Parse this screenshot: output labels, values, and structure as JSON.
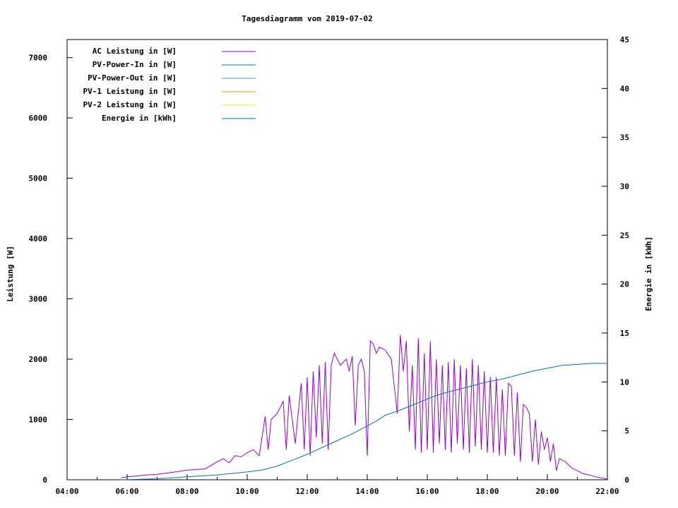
{
  "chart_data": {
    "type": "line",
    "title": "Tagesdiagramm vom 2019-07-02",
    "ylabel": "Leistung [W]",
    "y2label": "Energie in [kWh]",
    "xlabel": "",
    "x_unit": "hour of day",
    "xlim": [
      4,
      22
    ],
    "ylim": [
      0,
      7300
    ],
    "y2lim": [
      0,
      45
    ],
    "x_ticks": [
      "04:00",
      "06:00",
      "08:00",
      "10:00",
      "12:00",
      "14:00",
      "16:00",
      "18:00",
      "20:00",
      "22:00"
    ],
    "y_ticks": [
      "0",
      "1000",
      "2000",
      "3000",
      "4000",
      "5000",
      "6000",
      "7000"
    ],
    "y2_ticks": [
      "0",
      "5",
      "10",
      "15",
      "20",
      "25",
      "30",
      "35",
      "40",
      "45"
    ],
    "grid": false,
    "legend_position": "top-left",
    "series": [
      {
        "name": "AC Leistung in [W]",
        "axis": "left",
        "color": "#9400d3",
        "x": [
          5.8,
          6.0,
          6.3,
          6.6,
          7.0,
          7.3,
          7.6,
          8.0,
          8.3,
          8.6,
          9.0,
          9.2,
          9.4,
          9.6,
          9.8,
          10.0,
          10.2,
          10.4,
          10.6,
          10.7,
          10.8,
          11.0,
          11.2,
          11.3,
          11.4,
          11.6,
          11.8,
          11.9,
          12.0,
          12.1,
          12.2,
          12.3,
          12.4,
          12.5,
          12.6,
          12.7,
          12.8,
          12.9,
          13.0,
          13.1,
          13.2,
          13.3,
          13.4,
          13.5,
          13.6,
          13.7,
          13.8,
          13.9,
          14.0,
          14.1,
          14.2,
          14.3,
          14.4,
          14.6,
          14.8,
          15.0,
          15.1,
          15.2,
          15.3,
          15.4,
          15.5,
          15.6,
          15.7,
          15.8,
          15.9,
          16.0,
          16.1,
          16.2,
          16.3,
          16.4,
          16.5,
          16.6,
          16.7,
          16.8,
          16.9,
          17.0,
          17.1,
          17.2,
          17.3,
          17.4,
          17.5,
          17.6,
          17.7,
          17.8,
          17.9,
          18.0,
          18.1,
          18.2,
          18.3,
          18.4,
          18.5,
          18.6,
          18.7,
          18.8,
          18.9,
          19.0,
          19.1,
          19.2,
          19.3,
          19.4,
          19.5,
          19.6,
          19.7,
          19.8,
          19.9,
          20.0,
          20.1,
          20.2,
          20.3,
          20.4,
          20.6,
          20.8,
          21.0,
          21.2,
          21.4,
          21.6,
          21.8,
          22.0
        ],
        "y": [
          30,
          50,
          60,
          80,
          90,
          110,
          130,
          160,
          170,
          180,
          300,
          350,
          280,
          400,
          380,
          450,
          500,
          400,
          1050,
          500,
          1000,
          1100,
          1300,
          500,
          1400,
          600,
          1600,
          500,
          1700,
          400,
          1800,
          700,
          1900,
          600,
          1950,
          500,
          1900,
          2100,
          2000,
          1900,
          1950,
          2000,
          1800,
          2050,
          900,
          1900,
          2000,
          1800,
          400,
          2300,
          2250,
          2100,
          2200,
          2150,
          2000,
          1100,
          2400,
          1800,
          2300,
          800,
          1900,
          500,
          2350,
          450,
          2100,
          500,
          2300,
          450,
          2000,
          600,
          1900,
          500,
          1950,
          450,
          2000,
          600,
          1900,
          500,
          1850,
          450,
          2000,
          550,
          1900,
          500,
          1800,
          450,
          1700,
          450,
          1700,
          400,
          1500,
          400,
          1600,
          1550,
          400,
          1450,
          300,
          1250,
          1200,
          1100,
          300,
          1000,
          250,
          800,
          500,
          700,
          300,
          600,
          150,
          350,
          300,
          200,
          150,
          100,
          80,
          50,
          30,
          10
        ]
      },
      {
        "name": "PV-Power-In in [W]",
        "axis": "left",
        "color": "#008080",
        "x": [],
        "y": []
      },
      {
        "name": "PV-Power-Out in [W]",
        "axis": "left",
        "color": "#4a9fc4",
        "x": [],
        "y": []
      },
      {
        "name": "PV-1 Leistung in [W]",
        "axis": "left",
        "color": "#e69f00",
        "x": [],
        "y": []
      },
      {
        "name": "PV-2 Leistung in [W]",
        "axis": "left",
        "color": "#f0e442",
        "x": [],
        "y": []
      },
      {
        "name": "Energie in [kWh]",
        "axis": "right",
        "color": "#0072b2",
        "x": [
          5.8,
          7,
          8,
          9,
          10,
          10.5,
          11,
          11.5,
          12,
          12.5,
          13,
          13.5,
          14,
          14.3,
          14.6,
          15,
          15.4,
          15.8,
          16.2,
          16.6,
          17,
          17.5,
          18,
          18.5,
          19,
          19.5,
          20,
          20.5,
          21,
          21.5,
          22
        ],
        "y": [
          0,
          0.1,
          0.3,
          0.5,
          0.8,
          1.0,
          1.4,
          2.0,
          2.6,
          3.3,
          4.0,
          4.7,
          5.5,
          6.0,
          6.6,
          7.0,
          7.5,
          8.0,
          8.5,
          8.9,
          9.2,
          9.6,
          10.0,
          10.3,
          10.7,
          11.1,
          11.4,
          11.7,
          11.8,
          11.9,
          11.9
        ]
      }
    ]
  }
}
